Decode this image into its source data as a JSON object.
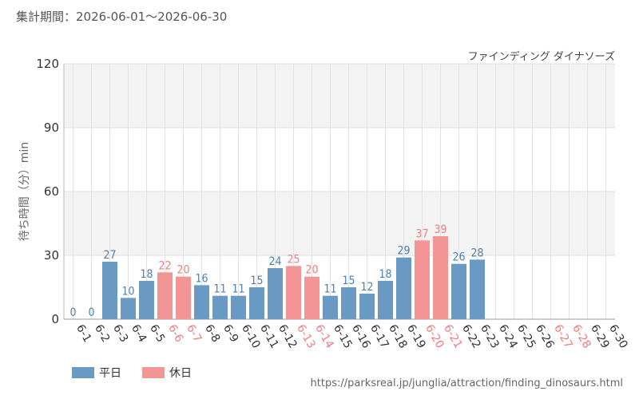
{
  "header": {
    "period": "集計期間：2026-06-01～2026-06-30",
    "attraction": "ファインディング ダイナソーズ"
  },
  "footer": {
    "source": "https://parksreal.jp/junglia/attraction/finding_dinosaurs.html"
  },
  "colors": {
    "weekday": "#6a9ac4",
    "holiday": "#f49595",
    "weekday_label": "#4d7fae",
    "holiday_label": "#f07d7d",
    "axis_text": "#333333"
  },
  "chart_data": {
    "type": "bar",
    "ylabel": "待ち時間（分）min",
    "ylim": [
      0,
      120
    ],
    "yticks": [
      0,
      30,
      60,
      90,
      120
    ],
    "grid": true,
    "legend_position": "bottom-left",
    "categories": [
      "6-1",
      "6-2",
      "6-3",
      "6-4",
      "6-5",
      "6-6",
      "6-7",
      "6-8",
      "6-9",
      "6-10",
      "6-11",
      "6-12",
      "6-13",
      "6-14",
      "6-15",
      "6-16",
      "6-17",
      "6-18",
      "6-19",
      "6-20",
      "6-21",
      "6-22",
      "6-23",
      "6-24",
      "6-25",
      "6-26",
      "6-27",
      "6-28",
      "6-29",
      "6-30"
    ],
    "values": [
      0,
      0,
      27,
      10,
      18,
      22,
      20,
      16,
      11,
      11,
      15,
      24,
      25,
      20,
      11,
      15,
      12,
      18,
      29,
      37,
      39,
      26,
      28,
      null,
      null,
      null,
      null,
      null,
      null,
      null
    ],
    "day_types": [
      "weekday",
      "weekday",
      "weekday",
      "weekday",
      "weekday",
      "holiday",
      "holiday",
      "weekday",
      "weekday",
      "weekday",
      "weekday",
      "weekday",
      "holiday",
      "holiday",
      "weekday",
      "weekday",
      "weekday",
      "weekday",
      "weekday",
      "holiday",
      "holiday",
      "weekday",
      "weekday",
      "weekday",
      "weekday",
      "weekday",
      "holiday",
      "holiday",
      "weekday",
      "weekday"
    ],
    "series": [
      {
        "name": "平日",
        "color": "#6a9ac4"
      },
      {
        "name": "休日",
        "color": "#f49595"
      }
    ]
  }
}
